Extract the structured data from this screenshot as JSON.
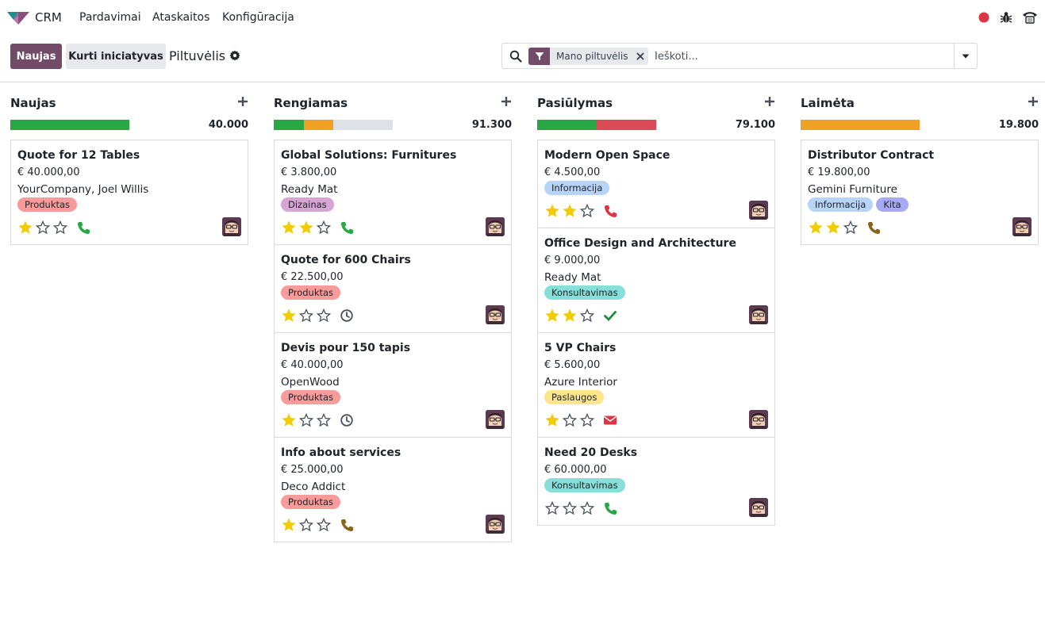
{
  "navbar": {
    "app_name": "CRM",
    "menu": [
      "Pardavimai",
      "Ataskaitos",
      "Konfigūracija"
    ]
  },
  "control_panel": {
    "new_button": "Naujas",
    "generate_button": "Kurti iniciatyvas",
    "breadcrumb": "Piltuvėlis",
    "search": {
      "facet": "Mano piltuvėlis",
      "placeholder": "Ieškoti..."
    }
  },
  "colors": {
    "brand": "#714B67",
    "green": "#28a745",
    "orange": "#f0a124",
    "red": "#dc4a57",
    "grey": "#dee2e6"
  },
  "columns": [
    {
      "title": "Naujas",
      "total": "40.000",
      "progress": [
        {
          "color": "green",
          "fraction": 1.0
        }
      ],
      "cards": [
        {
          "title": "Quote for 12 Tables",
          "amount": "€ 40.000,00",
          "partner": "YourCompany, Joel Willis",
          "tags": [
            {
              "label": "Produktas",
              "color": "#f99b9b"
            }
          ],
          "stars": 1,
          "activity": "phone-icon",
          "activity_color": "#28a745"
        }
      ]
    },
    {
      "title": "Rengiamas",
      "total": "91.300",
      "progress": [
        {
          "color": "green",
          "fraction": 0.25
        },
        {
          "color": "orange",
          "fraction": 0.25
        }
      ],
      "cards": [
        {
          "title": "Global Solutions: Furnitures",
          "amount": "€ 3.800,00",
          "partner": "Ready Mat",
          "tags": [
            {
              "label": "Dizainas",
              "color": "#d7a4d3"
            }
          ],
          "stars": 2,
          "activity": "phone-icon",
          "activity_color": "#28a745"
        },
        {
          "title": "Quote for 600 Chairs",
          "amount": "€ 22.500,00",
          "partner": "",
          "tags": [
            {
              "label": "Produktas",
              "color": "#f99b9b"
            }
          ],
          "stars": 1,
          "activity": "clock-icon",
          "activity_color": "#495057"
        },
        {
          "title": "Devis pour 150 tapis",
          "amount": "€ 40.000,00",
          "partner": "OpenWood",
          "tags": [
            {
              "label": "Produktas",
              "color": "#f99b9b"
            }
          ],
          "stars": 1,
          "activity": "clock-icon",
          "activity_color": "#495057"
        },
        {
          "title": "Info about services",
          "amount": "€ 25.000,00",
          "partner": "Deco Addict",
          "tags": [
            {
              "label": "Produktas",
              "color": "#f99b9b"
            }
          ],
          "stars": 1,
          "activity": "phone-icon",
          "activity_color": "#8b6419"
        }
      ]
    },
    {
      "title": "Pasiūlymas",
      "total": "79.100",
      "progress": [
        {
          "color": "green",
          "fraction": 0.5
        },
        {
          "color": "red",
          "fraction": 0.5
        }
      ],
      "cards": [
        {
          "title": "Modern Open Space",
          "amount": "€ 4.500,00",
          "partner": "",
          "tags": [
            {
              "label": "Informacija",
              "color": "#b7d3f6"
            }
          ],
          "stars": 2,
          "activity": "phone-icon",
          "activity_color": "#dc3545"
        },
        {
          "title": "Office Design and Architecture",
          "amount": "€ 9.000,00",
          "partner": "Ready Mat",
          "tags": [
            {
              "label": "Konsultavimas",
              "color": "#86dfd8"
            }
          ],
          "stars": 2,
          "activity": "check-icon",
          "activity_color": "#1e8a3a"
        },
        {
          "title": "5 VP Chairs",
          "amount": "€ 5.600,00",
          "partner": "Azure Interior",
          "tags": [
            {
              "label": "Paslaugos",
              "color": "#fde58a"
            }
          ],
          "stars": 1,
          "activity": "envelope-icon",
          "activity_color": "#dc3545"
        },
        {
          "title": "Need 20 Desks",
          "amount": "€ 60.000,00",
          "partner": "",
          "tags": [
            {
              "label": "Konsultavimas",
              "color": "#86dfd8"
            }
          ],
          "stars": 0,
          "activity": "phone-icon",
          "activity_color": "#28a745"
        }
      ]
    },
    {
      "title": "Laimėta",
      "total": "19.800",
      "progress": [
        {
          "color": "orange",
          "fraction": 1.0
        }
      ],
      "cards": [
        {
          "title": "Distributor Contract",
          "amount": "€ 19.800,00",
          "partner": "Gemini Furniture",
          "tags": [
            {
              "label": "Informacija",
              "color": "#b7d3f6"
            },
            {
              "label": "Kita",
              "color": "#a8a9f5"
            }
          ],
          "stars": 2,
          "activity": "phone-icon",
          "activity_color": "#8b6419"
        }
      ]
    }
  ]
}
